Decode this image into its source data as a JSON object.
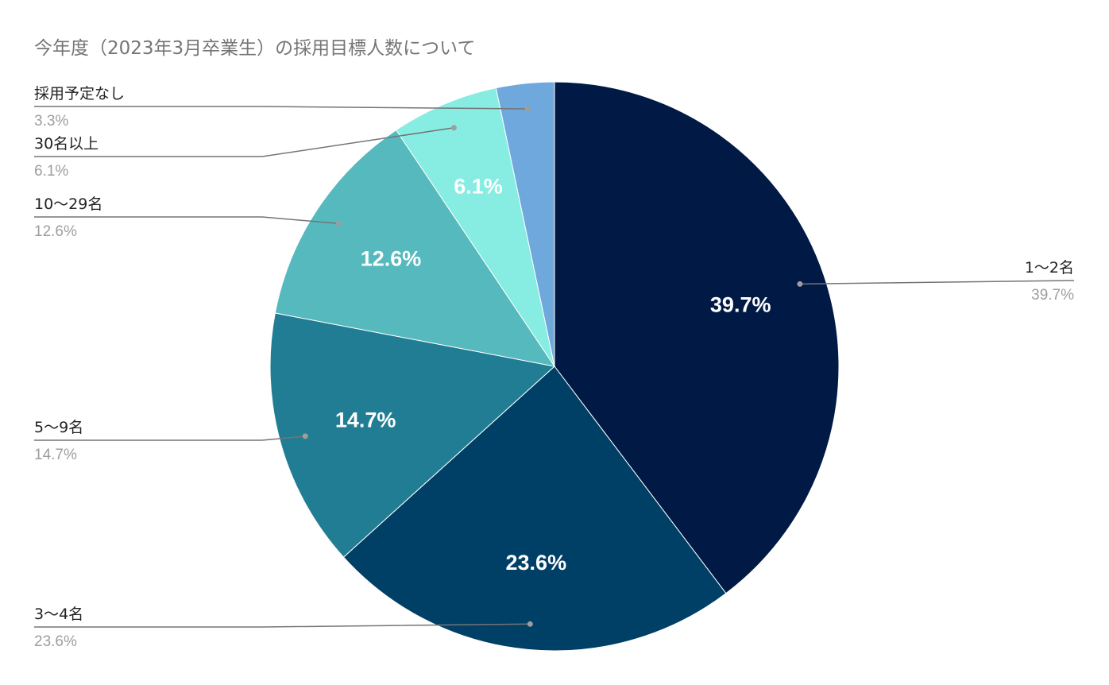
{
  "chart_data": {
    "type": "pie",
    "title": "今年度（2023年3月卒業生）の採用目標人数について",
    "slices": [
      {
        "label": "1〜2名",
        "value": 39.7,
        "display": "39.7%",
        "color": "#001a45",
        "inside_label": "39.7%"
      },
      {
        "label": "3〜4名",
        "value": 23.6,
        "display": "23.6%",
        "color": "#003f66",
        "inside_label": "23.6%"
      },
      {
        "label": "5〜9名",
        "value": 14.7,
        "display": "14.7%",
        "color": "#217d93",
        "inside_label": "14.7%"
      },
      {
        "label": "10〜29名",
        "value": 12.6,
        "display": "12.6%",
        "color": "#55b9be",
        "inside_label": "12.6%"
      },
      {
        "label": "30名以上",
        "value": 6.1,
        "display": "6.1%",
        "color": "#87ece1",
        "inside_label": "6.1%"
      },
      {
        "label": "採用予定なし",
        "value": 3.3,
        "display": "3.3%",
        "color": "#6fa8dc",
        "inside_label": ""
      }
    ],
    "start_angle_deg": 0,
    "direction": "clockwise",
    "legend": "leader-line labels"
  }
}
